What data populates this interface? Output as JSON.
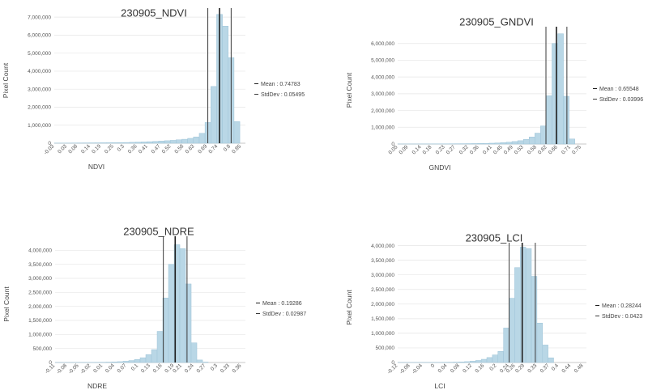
{
  "chart_data": [
    {
      "type": "bar",
      "title": "230905_NDVI",
      "xlabel": "NDVI",
      "ylabel": "Pixel Count",
      "ylim": [
        0,
        7500000
      ],
      "yticks": [
        0,
        1000000,
        2000000,
        3000000,
        4000000,
        5000000,
        6000000,
        7000000
      ],
      "ytick_labels": [
        "0",
        "1,000,000",
        "2,000,000",
        "3,000,000",
        "4,000,000",
        "5,000,000",
        "6,000,000",
        "7,000,000"
      ],
      "xticks": [
        -0.03,
        0.03,
        0.08,
        0.14,
        0.19,
        0.25,
        0.3,
        0.36,
        0.41,
        0.47,
        0.52,
        0.58,
        0.63,
        0.69,
        0.74,
        0.8,
        0.85
      ],
      "xtick_labels": [
        "-0.03",
        "0.03",
        "0.08",
        "0.14",
        "0.19",
        "0.25",
        "0.3",
        "0.36",
        "0.41",
        "0.47",
        "0.52",
        "0.58",
        "0.63",
        "0.69",
        "0.74",
        "0.8",
        "0.85"
      ],
      "xlim": [
        -0.03,
        0.87
      ],
      "bin_edges": [
        -0.03,
        -0.0027,
        0.0246,
        0.0519,
        0.0792,
        0.1065,
        0.1338,
        0.1611,
        0.1884,
        0.2157,
        0.243,
        0.2703,
        0.2976,
        0.3249,
        0.3522,
        0.3795,
        0.4068,
        0.4341,
        0.4614,
        0.4887,
        0.516,
        0.5433,
        0.5706,
        0.5979,
        0.6252,
        0.6525,
        0.6798,
        0.7071,
        0.7344,
        0.7617,
        0.789,
        0.8163,
        0.8436
      ],
      "values": [
        10000,
        10000,
        12000,
        14000,
        16000,
        18000,
        20000,
        22000,
        25000,
        28000,
        30000,
        35000,
        40000,
        50000,
        60000,
        70000,
        85000,
        100000,
        120000,
        140000,
        160000,
        190000,
        220000,
        270000,
        350000,
        550000,
        1150000,
        3150000,
        7150000,
        6500000,
        4750000,
        1200000
      ],
      "mean": 0.74783,
      "stddev": 0.05495,
      "legend": [
        "Mean : 0.74783",
        "StdDev : 0.05495"
      ]
    },
    {
      "type": "bar",
      "title": "230905_GNDVI",
      "xlabel": "GNDVI",
      "ylabel": "Pixel Count",
      "ylim": [
        0,
        7000000
      ],
      "yticks": [
        0,
        1000000,
        2000000,
        3000000,
        4000000,
        5000000,
        6000000
      ],
      "ytick_labels": [
        "0",
        "1,000,000",
        "2,000,000",
        "3,000,000",
        "4,000,000",
        "5,000,000",
        "6,000,000"
      ],
      "xticks": [
        0.05,
        0.09,
        0.14,
        0.18,
        0.23,
        0.27,
        0.32,
        0.36,
        0.41,
        0.45,
        0.49,
        0.53,
        0.58,
        0.62,
        0.66,
        0.71,
        0.75
      ],
      "xtick_labels": [
        "0.05",
        "0.09",
        "0.14",
        "0.18",
        "0.23",
        "0.27",
        "0.32",
        "0.36",
        "0.41",
        "0.45",
        "0.49",
        "0.53",
        "0.58",
        "0.62",
        "0.66",
        "0.71",
        "0.75"
      ],
      "xlim": [
        0.05,
        0.77
      ],
      "bin_edges": [
        0.05,
        0.0718,
        0.0936,
        0.1154,
        0.1372,
        0.159,
        0.1808,
        0.2026,
        0.2244,
        0.2462,
        0.268,
        0.2898,
        0.3116,
        0.3334,
        0.3552,
        0.377,
        0.3988,
        0.4206,
        0.4424,
        0.4642,
        0.486,
        0.5078,
        0.5296,
        0.5514,
        0.5732,
        0.595,
        0.6168,
        0.6386,
        0.6604,
        0.6822,
        0.704,
        0.7258
      ],
      "values": [
        5000,
        5000,
        6000,
        6000,
        7000,
        8000,
        9000,
        10000,
        12000,
        14000,
        16000,
        18000,
        22000,
        26000,
        32000,
        40000,
        50000,
        65000,
        85000,
        110000,
        150000,
        200000,
        280000,
        420000,
        650000,
        1080000,
        2880000,
        6000000,
        6580000,
        2850000,
        300000
      ],
      "mean": 0.65548,
      "stddev": 0.03996,
      "legend": [
        "Mean : 0.65548",
        "StdDev : 0.03996"
      ]
    },
    {
      "type": "bar",
      "title": "230905_NDRE",
      "xlabel": "NDRE",
      "ylabel": "Pixel Count",
      "ylim": [
        0,
        4500000
      ],
      "yticks": [
        0,
        500000,
        1000000,
        1500000,
        2000000,
        2500000,
        3000000,
        3500000,
        4000000
      ],
      "ytick_labels": [
        "0",
        "500,000",
        "1,000,000",
        "1,500,000",
        "2,000,000",
        "2,500,000",
        "3,000,000",
        "3,500,000",
        "4,000,000"
      ],
      "xticks": [
        -0.11,
        -0.08,
        -0.05,
        -0.02,
        0.01,
        0.04,
        0.07,
        0.1,
        0.13,
        0.16,
        0.19,
        0.21,
        0.24,
        0.27,
        0.3,
        0.33,
        0.36
      ],
      "xtick_labels": [
        "-0.11",
        "-0.08",
        "-0.05",
        "-0.02",
        "0.01",
        "0.04",
        "0.07",
        "0.1",
        "0.13",
        "0.16",
        "0.19",
        "0.21",
        "0.24",
        "0.27",
        "0.3",
        "0.33",
        "0.36"
      ],
      "xlim": [
        -0.11,
        0.37
      ],
      "bin_edges": [
        -0.11,
        -0.0957,
        -0.0814,
        -0.0671,
        -0.0528,
        -0.0385,
        -0.0242,
        -0.0099,
        0.0044,
        0.0187,
        0.033,
        0.0473,
        0.0616,
        0.0759,
        0.0902,
        0.1045,
        0.1188,
        0.1331,
        0.1474,
        0.1617,
        0.176,
        0.1903,
        0.2046,
        0.2189,
        0.2332,
        0.2475,
        0.2618,
        0.2761
      ],
      "values": [
        3000,
        3000,
        3000,
        4000,
        4000,
        5000,
        6000,
        8000,
        10000,
        14000,
        20000,
        30000,
        45000,
        70000,
        110000,
        170000,
        280000,
        460000,
        1110000,
        2300000,
        3500000,
        4200000,
        4060000,
        2800000,
        700000,
        90000,
        15000
      ],
      "mean": 0.19286,
      "stddev": 0.02987,
      "legend": [
        "Mean : 0.19286",
        "StdDev : 0.02987"
      ]
    },
    {
      "type": "bar",
      "title": "230905_LCI",
      "xlabel": "LCI",
      "ylabel": "Pixel Count",
      "ylim": [
        0,
        4100000
      ],
      "yticks": [
        0,
        500000,
        1000000,
        1500000,
        2000000,
        2500000,
        3000000,
        3500000,
        4000000
      ],
      "ytick_labels": [
        "0",
        "500,000",
        "1,000,000",
        "1,500,000",
        "2,000,000",
        "2,500,000",
        "3,000,000",
        "3,500,000",
        "4,000,000"
      ],
      "xticks": [
        -0.12,
        -0.08,
        -0.04,
        0,
        0.04,
        0.08,
        0.12,
        0.16,
        0.2,
        0.24,
        0.26,
        0.29,
        0.33,
        0.37,
        0.4,
        0.44,
        0.48
      ],
      "xtick_labels": [
        "-0.12",
        "-0.08",
        "-0.04",
        "0",
        "0.04",
        "0.08",
        "0.12",
        "0.16",
        "0.2",
        "0.24",
        "0.26",
        "0.29",
        "0.33",
        "0.37",
        "0.4",
        "0.44",
        "0.48"
      ],
      "xlim": [
        -0.12,
        0.49
      ],
      "bin_edges": [
        -0.12,
        -0.102,
        -0.084,
        -0.066,
        -0.048,
        -0.03,
        -0.012,
        0.006,
        0.024,
        0.042,
        0.06,
        0.078,
        0.096,
        0.114,
        0.132,
        0.15,
        0.168,
        0.186,
        0.204,
        0.222,
        0.24,
        0.258,
        0.276,
        0.294,
        0.312,
        0.33,
        0.348,
        0.366,
        0.384
      ],
      "values": [
        3000,
        3000,
        3000,
        4000,
        4000,
        5000,
        5000,
        6000,
        8000,
        10000,
        14000,
        20000,
        30000,
        45000,
        70000,
        110000,
        170000,
        260000,
        380000,
        1180000,
        2200000,
        3250000,
        3950000,
        3900000,
        2950000,
        1350000,
        600000,
        160000
      ],
      "mean": 0.28244,
      "stddev": 0.0423,
      "legend": [
        "Mean : 0.28244",
        "StdDev : 0.0423"
      ]
    }
  ],
  "colors": {
    "bar_fill": "#b9d7e6",
    "bar_stroke": "#9ec4d8",
    "stat_line": "#3a3a3a",
    "mean_line": "#1d1d1d",
    "grid": "#e6e6e6"
  }
}
